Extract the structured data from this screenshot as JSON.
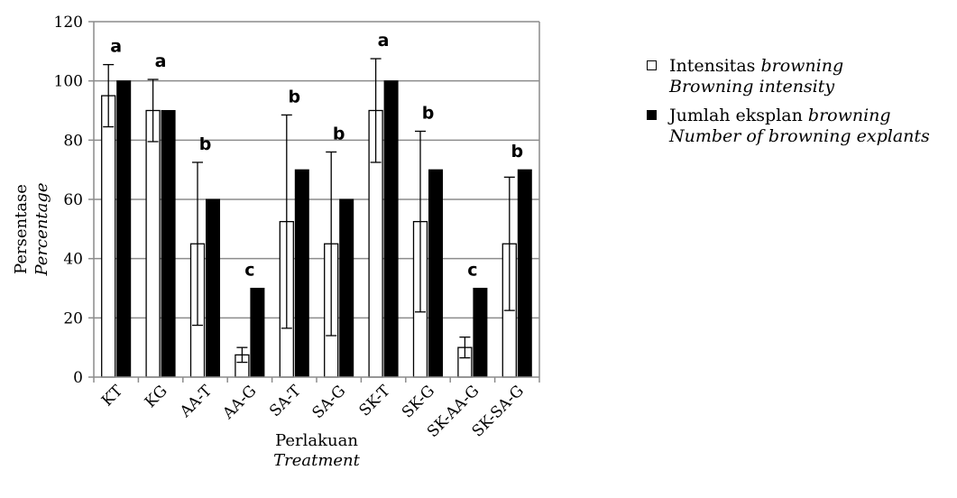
{
  "chart_data": {
    "type": "bar",
    "categories": [
      "KT",
      "KG",
      "AA-T",
      "AA-G",
      "SA-T",
      "SA-G",
      "SK-T",
      "SK-G",
      "SK-AA-G",
      "SK-SA-G"
    ],
    "series": [
      {
        "name_id": "Intensitas browning",
        "name_en": "Browning intensity",
        "fill": "#ffffff",
        "values": [
          95,
          90,
          45,
          7.5,
          52.5,
          45,
          90,
          52.5,
          10,
          45
        ],
        "error": [
          10.5,
          10.5,
          27.5,
          2.5,
          36,
          31,
          17.5,
          30.5,
          3.5,
          22.5
        ]
      },
      {
        "name_id": "Jumlah eksplan browning",
        "name_en": "Number of browning explants",
        "fill": "#000000",
        "values": [
          100,
          90,
          60,
          30,
          70,
          60,
          100,
          70,
          30,
          70
        ]
      }
    ],
    "significance": [
      "a",
      "a",
      "b",
      "c",
      "b",
      "b",
      "a",
      "b",
      "c",
      "b"
    ],
    "ylim": [
      0,
      120
    ],
    "yticks": [
      0,
      20,
      40,
      60,
      80,
      100,
      120
    ],
    "ylabel": "Persentase",
    "ylabel_en": "Percentage",
    "xlabel": "Perlakuan",
    "xlabel_en": "Treatment",
    "grid": "horizontal",
    "legend_position": "right"
  },
  "legend": {
    "item1_prefix": "Intensitas ",
    "item1_italic": "browning",
    "item1_line2": "Browning intensity",
    "item2_prefix": "Jumlah eksplan ",
    "item2_italic": "browning",
    "item2_line2": "Number of browning explants"
  },
  "colors": {
    "grid": "#8c8c8c",
    "bar_dark": "#000000",
    "bar_light": "#ffffff"
  }
}
